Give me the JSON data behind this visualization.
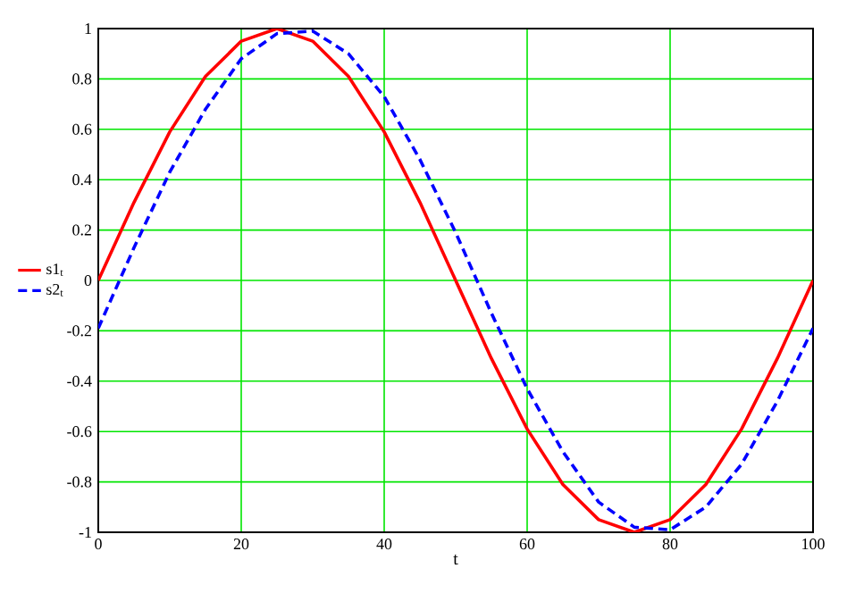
{
  "chart_data": {
    "type": "line",
    "xlabel": "t",
    "xlim": [
      0,
      100
    ],
    "xticks": [
      0,
      20,
      40,
      60,
      80,
      100
    ],
    "ylim": [
      -1,
      1
    ],
    "yticks": [
      -1,
      -0.8,
      -0.6,
      -0.4,
      -0.2,
      0,
      0.2,
      0.4,
      0.6,
      0.8,
      1
    ],
    "grid": true,
    "legend": "left",
    "x": [
      0,
      5,
      10,
      15,
      20,
      25,
      30,
      35,
      40,
      45,
      50,
      55,
      60,
      65,
      70,
      75,
      80,
      85,
      90,
      95,
      100
    ],
    "series": [
      {
        "name": "s1$_{t}$",
        "color": "#ff0000",
        "line_style": "solid",
        "values": [
          0,
          0.31,
          0.59,
          0.81,
          0.95,
          1,
          0.95,
          0.81,
          0.59,
          0.31,
          0,
          -0.31,
          -0.59,
          -0.81,
          -0.95,
          -1,
          -0.95,
          -0.81,
          -0.59,
          -0.31,
          0
        ]
      },
      {
        "name": "s2$_{t}$",
        "color": "#0000ff",
        "line_style": "dashed",
        "values": [
          -0.19,
          0.13,
          0.43,
          0.68,
          0.88,
          0.98,
          0.99,
          0.9,
          0.73,
          0.48,
          0.19,
          -0.13,
          -0.43,
          -0.68,
          -0.88,
          -0.98,
          -0.99,
          -0.9,
          -0.73,
          -0.48,
          -0.19
        ]
      }
    ]
  }
}
